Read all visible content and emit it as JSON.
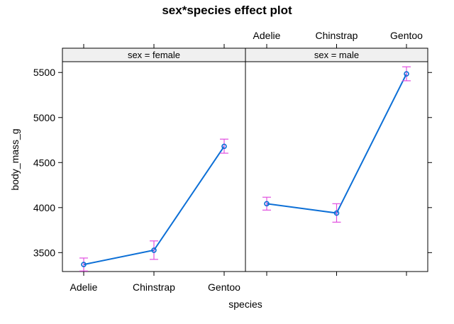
{
  "chart_data": {
    "type": "line",
    "title": "sex*species effect plot",
    "xlabel": "species",
    "ylabel": "body_mass_g",
    "categories": [
      "Adelie",
      "Chinstrap",
      "Gentoo"
    ],
    "ylim": [
      3290,
      5620
    ],
    "yticks": [
      3500,
      4000,
      4500,
      5000,
      5500
    ],
    "ytick_labels": [
      "3500",
      "4000",
      "4500",
      "5000",
      "5500"
    ],
    "panels": [
      {
        "strip": "sex = female",
        "values": [
          3368,
          3527,
          4680
        ],
        "lower": [
          3296,
          3425,
          4604
        ],
        "upper": [
          3440,
          3630,
          4760
        ]
      },
      {
        "strip": "sex = male",
        "values": [
          4043,
          3939,
          5485
        ],
        "lower": [
          3972,
          3838,
          5408
        ],
        "upper": [
          4115,
          4043,
          5563
        ]
      }
    ],
    "colors": {
      "line": "#0C6FD6",
      "errorbar": "#E14FE0",
      "strip_bg": "#F0F0F0",
      "axis": "#000000"
    }
  }
}
